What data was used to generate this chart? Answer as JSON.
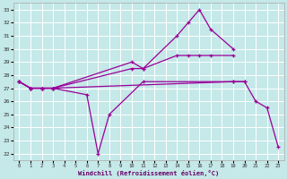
{
  "xlabel": "Windchill (Refroidissement éolien,°C)",
  "bg_color": "#c5e8e8",
  "grid_color": "#ffffff",
  "line_color": "#990099",
  "xlim": [
    -0.5,
    23.5
  ],
  "ylim": [
    21.5,
    33.5
  ],
  "xticks": [
    0,
    1,
    2,
    3,
    4,
    5,
    6,
    7,
    8,
    9,
    10,
    11,
    12,
    13,
    14,
    15,
    16,
    17,
    18,
    19,
    20,
    21,
    22,
    23
  ],
  "yticks": [
    22,
    23,
    24,
    25,
    26,
    27,
    28,
    29,
    30,
    31,
    32,
    33
  ],
  "lines": [
    {
      "x": [
        0,
        1,
        2,
        3,
        10,
        11,
        14,
        15,
        16,
        17,
        19
      ],
      "y": [
        27.5,
        27.0,
        27.0,
        27.0,
        29.0,
        28.5,
        31.0,
        32.0,
        33.0,
        31.5,
        30.0
      ]
    },
    {
      "x": [
        0,
        1,
        2,
        3,
        10,
        11,
        14,
        15,
        16,
        17,
        19
      ],
      "y": [
        27.5,
        27.0,
        27.0,
        27.0,
        28.5,
        28.5,
        29.5,
        29.5,
        29.5,
        29.5,
        29.5
      ]
    },
    {
      "x": [
        0,
        1,
        2,
        3,
        19,
        20
      ],
      "y": [
        27.5,
        27.0,
        27.0,
        27.0,
        27.5,
        27.5
      ]
    },
    {
      "x": [
        0,
        1,
        2,
        3,
        6,
        7,
        8,
        11,
        19,
        20,
        21,
        22,
        23
      ],
      "y": [
        27.5,
        27.0,
        27.0,
        27.0,
        26.5,
        22.0,
        25.0,
        27.5,
        27.5,
        27.5,
        26.0,
        25.5,
        22.5
      ]
    }
  ]
}
